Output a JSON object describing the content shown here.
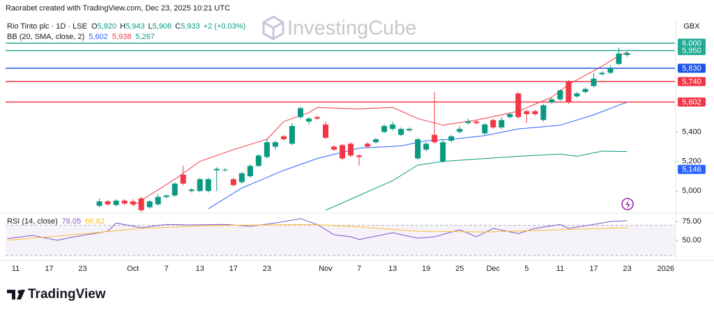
{
  "header": {
    "credit": "Raorabet created with TradingView.com, Dec 23, 2025 10:21 UTC",
    "symbol": "Rio Tinto plc · 1D · LSE",
    "ohlc": [
      {
        "label": "O",
        "value": "5,920"
      },
      {
        "label": "H",
        "value": "5,943"
      },
      {
        "label": "L",
        "value": "5,908"
      },
      {
        "label": "C",
        "value": "5,933"
      }
    ],
    "change": "+2 (+0.03%)",
    "currency": "GBX",
    "bb_legend": {
      "name": "BB (20, SMA, close, 2)",
      "values": [
        "5,602",
        "5,938",
        "5,267"
      ],
      "colors": [
        "#2962ff",
        "#f23645",
        "#089981"
      ]
    },
    "watermark": "InvestingCube"
  },
  "footer": {
    "brand": "TradingView"
  },
  "chart_data": [
    {
      "type": "candlestick",
      "up_color": "#089981",
      "down_color": "#f23645",
      "xlim": [
        -1.2,
        78.7
      ],
      "ylim": [
        4860,
        6160
      ],
      "xticks": [
        {
          "value": 0,
          "label": "11"
        },
        {
          "value": 4,
          "label": "17"
        },
        {
          "value": 8,
          "label": "23"
        },
        {
          "value": 14,
          "label": "Oct"
        },
        {
          "value": 18,
          "label": "7"
        },
        {
          "value": 22,
          "label": "13"
        },
        {
          "value": 26,
          "label": "17"
        },
        {
          "value": 30,
          "label": "23"
        },
        {
          "value": 37,
          "label": "Nov"
        },
        {
          "value": 41,
          "label": "7"
        },
        {
          "value": 45,
          "label": "13"
        },
        {
          "value": 49,
          "label": "19"
        },
        {
          "value": 53,
          "label": "25"
        },
        {
          "value": 57,
          "label": "Dec"
        },
        {
          "value": 61,
          "label": "5"
        },
        {
          "value": 65,
          "label": "11"
        },
        {
          "value": 69,
          "label": "17"
        },
        {
          "value": 73,
          "label": "23"
        },
        {
          "value": 77.6,
          "label": "2026"
        }
      ],
      "yticks": [
        {
          "value": 5000,
          "label": "5,000"
        },
        {
          "value": 5200,
          "label": "5,200"
        },
        {
          "value": 5400,
          "label": "5,400"
        }
      ],
      "levels": [
        {
          "value": 6000,
          "label": "6,000",
          "color": "#22ab94",
          "line": true
        },
        {
          "value": 5950,
          "label": "5,950",
          "color": "#22ab94",
          "line": true
        },
        {
          "value": 5830,
          "label": "5,830",
          "color": "#1e53e5",
          "line": true
        },
        {
          "value": 5740,
          "label": "5,740",
          "color": "#f23645",
          "line": true
        },
        {
          "value": 5602,
          "label": "5,602",
          "color": "#f23645",
          "line": true
        },
        {
          "value": 5146,
          "label": "5,146",
          "color": "#2962ff",
          "line": false
        }
      ],
      "x": [
        10,
        11,
        12,
        13,
        14,
        15,
        16,
        17,
        18,
        19,
        20,
        21,
        22,
        23,
        24,
        25,
        26,
        27,
        28,
        29,
        30,
        31,
        32,
        33,
        34,
        35,
        36,
        37,
        38,
        39,
        40,
        41,
        42,
        43,
        44,
        45,
        46,
        47,
        48,
        49,
        50,
        51,
        52,
        53,
        54,
        55,
        56,
        57,
        58,
        59,
        60,
        61,
        62,
        63,
        64,
        65,
        66,
        67,
        68,
        69,
        70,
        71,
        72,
        73
      ],
      "open": [
        4900,
        4930,
        4905,
        4935,
        4930,
        4950,
        4890,
        4910,
        4960,
        4970,
        5110,
        5000,
        5000,
        5000,
        5140,
        5140,
        5080,
        5060,
        5100,
        5170,
        5230,
        5300,
        5370,
        5320,
        5500,
        5470,
        5500,
        5450,
        5300,
        5310,
        5320,
        5240,
        5320,
        5330,
        5400,
        5420,
        5380,
        5410,
        5220,
        5280,
        5380,
        5200,
        5340,
        5400,
        5460,
        5470,
        5390,
        5480,
        5430,
        5500,
        5660,
        5540,
        5540,
        5480,
        5600,
        5620,
        5740,
        5640,
        5670,
        5710,
        5790,
        5800,
        5860,
        5920
      ],
      "high": [
        4950,
        4940,
        4945,
        4945,
        4945,
        4960,
        4940,
        4980,
        4975,
        5060,
        5170,
        5020,
        5090,
        5090,
        5160,
        5155,
        5090,
        5130,
        5180,
        5250,
        5350,
        5340,
        5380,
        5460,
        5570,
        5500,
        5510,
        5470,
        5310,
        5320,
        5330,
        5250,
        5330,
        5360,
        5450,
        5470,
        5430,
        5430,
        5360,
        5330,
        5670,
        5350,
        5380,
        5440,
        5490,
        5480,
        5460,
        5490,
        5500,
        5530,
        5670,
        5550,
        5550,
        5590,
        5630,
        5690,
        5750,
        5670,
        5700,
        5800,
        5810,
        5850,
        5970,
        5943
      ],
      "low": [
        4890,
        4900,
        4895,
        4905,
        4900,
        4860,
        4880,
        4900,
        4950,
        4960,
        5040,
        4990,
        4990,
        4990,
        5000,
        5130,
        5030,
        5050,
        5090,
        5160,
        5220,
        5280,
        5340,
        5310,
        5490,
        5450,
        5480,
        5350,
        5270,
        5210,
        5230,
        5170,
        5290,
        5320,
        5390,
        5410,
        5370,
        5400,
        5210,
        5270,
        5320,
        5190,
        5330,
        5390,
        5450,
        5450,
        5380,
        5420,
        5420,
        5490,
        5490,
        5460,
        5510,
        5470,
        5590,
        5610,
        5590,
        5630,
        5660,
        5700,
        5780,
        5790,
        5850,
        5908
      ],
      "close": [
        4930,
        4910,
        4935,
        4915,
        4910,
        4870,
        4930,
        4960,
        4970,
        5050,
        5050,
        5010,
        5080,
        5080,
        5150,
        5145,
        5040,
        5120,
        5170,
        5240,
        5330,
        5330,
        5350,
        5440,
        5560,
        5490,
        5490,
        5360,
        5280,
        5220,
        5240,
        5230,
        5300,
        5350,
        5440,
        5450,
        5420,
        5420,
        5350,
        5320,
        5330,
        5330,
        5370,
        5420,
        5470,
        5460,
        5450,
        5430,
        5480,
        5520,
        5500,
        5520,
        5520,
        5580,
        5620,
        5680,
        5600,
        5660,
        5690,
        5760,
        5800,
        5830,
        5930,
        5933
      ],
      "series": [
        {
          "color": "#f23645",
          "x": [
            14,
            19,
            22,
            26,
            30,
            32,
            35,
            36,
            41,
            45,
            48,
            51,
            55,
            58,
            60,
            64,
            66,
            70,
            72,
            73
          ],
          "values": [
            4900,
            5080,
            5200,
            5280,
            5350,
            5470,
            5530,
            5565,
            5555,
            5565,
            5490,
            5445,
            5480,
            5515,
            5540,
            5635,
            5720,
            5845,
            5915,
            5938
          ]
        },
        {
          "color": "#2962ff",
          "x": [
            23,
            27,
            32,
            36,
            41,
            46,
            49,
            52,
            56,
            60,
            65,
            69,
            73
          ],
          "values": [
            4880,
            5020,
            5140,
            5220,
            5290,
            5305,
            5340,
            5350,
            5375,
            5420,
            5445,
            5515,
            5602
          ]
        },
        {
          "color": "#089981",
          "x": [
            37,
            40,
            45,
            48,
            51,
            56,
            60,
            65,
            67,
            70,
            73
          ],
          "values": [
            4870,
            4945,
            5070,
            5175,
            5200,
            5220,
            5235,
            5250,
            5235,
            5270,
            5267
          ]
        }
      ]
    },
    {
      "type": "line",
      "title": "RSI (14, close)",
      "value_labels": [
        "76.05",
        "66.82"
      ],
      "ylim": [
        25,
        82.4
      ],
      "yticks": [
        {
          "value": 75,
          "label": "75.00"
        },
        {
          "value": 50,
          "label": "50.00"
        }
      ],
      "band": [
        30,
        70
      ],
      "band_color": "#7e57c2",
      "series": [
        {
          "color": "#7e57c2",
          "x": [
            -1,
            2,
            5,
            7,
            11,
            12,
            15,
            18,
            21,
            25,
            28,
            31,
            34,
            36,
            38,
            40,
            41,
            45,
            48,
            50,
            53,
            55,
            57,
            60,
            62,
            65,
            66,
            69,
            71,
            73
          ],
          "values": [
            52,
            56.5,
            50,
            54.6,
            62,
            73,
            66.7,
            71,
            70.4,
            71,
            68.5,
            73,
            78.7,
            71,
            57.4,
            54.6,
            51,
            60,
            52.8,
            54.6,
            64,
            54.6,
            65.7,
            59,
            65.7,
            71,
            65.7,
            71,
            75,
            76.05
          ]
        },
        {
          "color": "#fbc02d",
          "x": [
            -1,
            6.5,
            15,
            23,
            35,
            40,
            48,
            56,
            65,
            73
          ],
          "values": [
            50,
            57,
            65.7,
            69.4,
            71,
            68.5,
            62,
            61,
            64,
            66.82
          ]
        }
      ]
    }
  ]
}
